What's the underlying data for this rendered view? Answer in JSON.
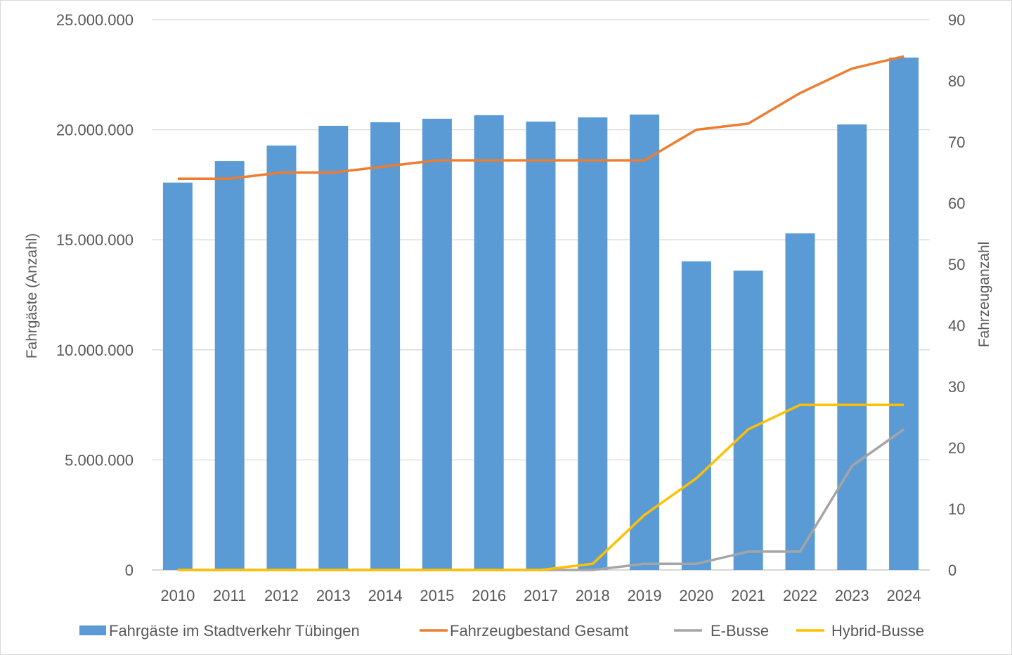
{
  "chart_data": {
    "type": "bar+line",
    "categories": [
      "2010",
      "2011",
      "2012",
      "2013",
      "2014",
      "2015",
      "2016",
      "2017",
      "2018",
      "2019",
      "2020",
      "2021",
      "2022",
      "2023",
      "2024"
    ],
    "bar_series": {
      "name": "Fahrgäste im Stadtverkehr Tübingen",
      "axis": "left",
      "color": "#5b9bd5",
      "values": [
        17600000,
        18580000,
        19280000,
        20180000,
        20340000,
        20500000,
        20660000,
        20370000,
        20560000,
        20690000,
        14020000,
        13600000,
        15290000,
        20240000,
        23280000
      ]
    },
    "line_series": [
      {
        "name": "Fahrzeugbestand Gesamt",
        "axis": "right",
        "color": "#ed7d31",
        "values": [
          64,
          64,
          65,
          65,
          66,
          67,
          67,
          67,
          67,
          67,
          72,
          73,
          78,
          82,
          84
        ]
      },
      {
        "name": "E-Busse",
        "axis": "right",
        "color": "#a5a5a5",
        "values": [
          0,
          0,
          0,
          0,
          0,
          0,
          0,
          0,
          0,
          1,
          1,
          3,
          3,
          17,
          23
        ]
      },
      {
        "name": "Hybrid-Busse",
        "axis": "right",
        "color": "#ffc000",
        "values": [
          0,
          0,
          0,
          0,
          0,
          0,
          0,
          0,
          1,
          9,
          15,
          23,
          27,
          27,
          27
        ]
      }
    ],
    "ylabel": "Fahrgäste (Anzahl)",
    "y2label": "Fahrzeuganzahl",
    "ylim": [
      0,
      25000000
    ],
    "y2lim": [
      0,
      90
    ],
    "yticks": [
      "0",
      "5.000.000",
      "10.000.000",
      "15.000.000",
      "20.000.000",
      "25.000.000"
    ],
    "y2ticks": [
      "0",
      "10",
      "20",
      "30",
      "40",
      "50",
      "60",
      "70",
      "80",
      "90"
    ],
    "grid": true,
    "legend": "bottom"
  }
}
